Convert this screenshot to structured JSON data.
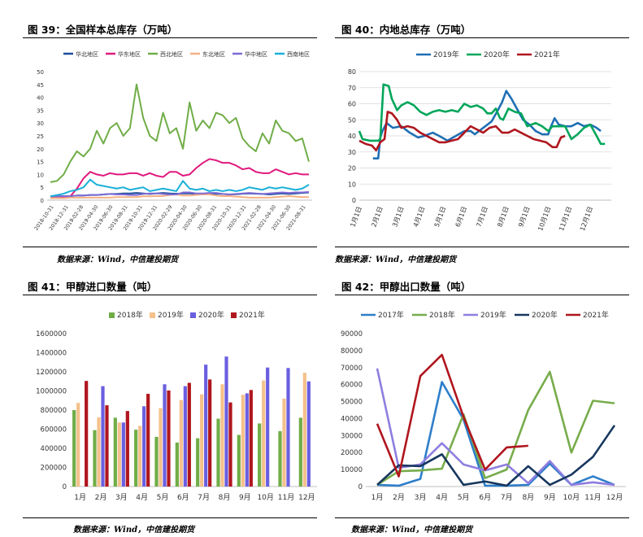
{
  "figures": [
    {
      "title": "图 39：全国样本总库存（万吨）",
      "source": "数据来源：Wind，中信建投期货"
    },
    {
      "title": "图 40：内地总库存（万吨）",
      "source": "数据来源：Wind，中信建投期货"
    },
    {
      "title": "图 41：甲醇进口数量（吨）",
      "source": "数据来源：Wind，中信建投期货"
    },
    {
      "title": "图 42：甲醇出口数量（吨）",
      "source": "数据来源：Wind，中信建投期货"
    }
  ],
  "chart_data": [
    {
      "type": "line",
      "ylim": [
        0,
        50
      ],
      "yticks": [
        0,
        5,
        10,
        15,
        20,
        25,
        30,
        35,
        40,
        45,
        50
      ],
      "x_tick_labels": [
        "2018-10-31",
        "2018-12-31",
        "2019-02-28",
        "2019-04-30",
        "2019-06-30",
        "2019-08-31",
        "2019-10-31",
        "2019-12-31",
        "2020-02-29",
        "2020-04-30",
        "2020-06-30",
        "2020-08-31",
        "2020-10-31",
        "2020-12-31",
        "2021-02-28",
        "2021-04-30",
        "2021-06-30",
        "2021-08-31"
      ],
      "legend_position": "top",
      "series": [
        {
          "name": "华北地区",
          "color": "#1f4e9c",
          "values": [
            1.5,
            1.5,
            1.5,
            1.6,
            1.8,
            1.8,
            2,
            2,
            2.2,
            2.4,
            2.4,
            2.6,
            2.6,
            2.8,
            2.6,
            2.4,
            2.6,
            2.8,
            2.6,
            2.5,
            2.6,
            2.6,
            2.4,
            2.2,
            2.4,
            2.5,
            2.4,
            2.2,
            2.3,
            2.5,
            2.6,
            2.5,
            2.4,
            2.2,
            2.4,
            2.6,
            2.4,
            2.6,
            2.8,
            3
          ]
        },
        {
          "name": "华东地区",
          "color": "#e0197d",
          "values": [
            1,
            1,
            1.2,
            1.5,
            4.5,
            8.5,
            11,
            10,
            9.5,
            10.5,
            10,
            10,
            10.5,
            10.5,
            9.5,
            10.5,
            9.5,
            9,
            11,
            11,
            9.5,
            10,
            12.5,
            14.5,
            16,
            15.5,
            14.5,
            14.5,
            13.5,
            12,
            12.5,
            11,
            10.5,
            10.5,
            12,
            11,
            10,
            10.5,
            10,
            10
          ]
        },
        {
          "name": "西北地区",
          "color": "#70ad47",
          "values": [
            7,
            7.5,
            10,
            15,
            19,
            17,
            20,
            27,
            22,
            28,
            30,
            25,
            28,
            45,
            32,
            25,
            23,
            34,
            26,
            28,
            20,
            38,
            27,
            31,
            28,
            34,
            33,
            30,
            32,
            24,
            21,
            19,
            26,
            22,
            31,
            27,
            26,
            23,
            24,
            15
          ]
        },
        {
          "name": "东北地区",
          "color": "#f4b183",
          "values": [
            0.8,
            0.8,
            0.8,
            1,
            1,
            1,
            1,
            1,
            1,
            1,
            1.2,
            1.2,
            1.2,
            1.2,
            1.5,
            1.5,
            1.6,
            1.6,
            2,
            2.2,
            1.8,
            1.8,
            2,
            2.2,
            2.2,
            1.8,
            1.6,
            1.6,
            1.4,
            1.2,
            1,
            1,
            1,
            1,
            1.2,
            1.4,
            1.6,
            1.4,
            1.2,
            1.2
          ]
        },
        {
          "name": "华中地区",
          "color": "#7e6bd4",
          "values": [
            1.5,
            1.5,
            1.6,
            1.6,
            1.8,
            1.8,
            2,
            2,
            2.2,
            2.4,
            2.2,
            2.2,
            2,
            2,
            2.4,
            2.6,
            2.6,
            2.4,
            2.2,
            2.2,
            3,
            3,
            2.6,
            2.6,
            2.8,
            2.8,
            2.4,
            2.2,
            2.4,
            2.6,
            2.8,
            2.6,
            2.4,
            2.6,
            2.8,
            3,
            2.8,
            3,
            3,
            3.2
          ]
        },
        {
          "name": "西南地区",
          "color": "#1ab0d8",
          "values": [
            1.5,
            2,
            2.5,
            3.5,
            4,
            5,
            8,
            6,
            5.5,
            5,
            4.5,
            5,
            4,
            4.5,
            5,
            3.5,
            4,
            4.5,
            4,
            3.5,
            7.5,
            4.5,
            4,
            4.5,
            3.5,
            4,
            3.5,
            4,
            3.5,
            4,
            5,
            4.5,
            4,
            5,
            4.5,
            5,
            4.5,
            4,
            4.5,
            6
          ]
        }
      ]
    },
    {
      "type": "line",
      "ylim": [
        0,
        80
      ],
      "yticks": [
        0,
        10,
        20,
        30,
        40,
        50,
        60,
        70,
        80
      ],
      "x_tick_labels": [
        "1月1日",
        "2月1日",
        "3月1日",
        "4月1日",
        "5月1日",
        "6月1日",
        "7月1日",
        "8月1日",
        "9月1日",
        "10月1日",
        "11月1日",
        "12月1日"
      ],
      "legend_position": "top",
      "series": [
        {
          "name": "2019年",
          "color": "#1f6fb4",
          "points": [
            [
              1.65,
              26
            ],
            [
              1.9,
              26
            ],
            [
              2.0,
              39
            ],
            [
              2.1,
              43
            ],
            [
              2.3,
              48
            ],
            [
              2.6,
              45
            ],
            [
              3.0,
              46
            ],
            [
              3.4,
              42
            ],
            [
              3.8,
              39
            ],
            [
              4.1,
              40
            ],
            [
              4.5,
              42
            ],
            [
              4.8,
              40
            ],
            [
              5.2,
              37
            ],
            [
              5.6,
              40
            ],
            [
              6.0,
              43
            ],
            [
              6.3,
              43
            ],
            [
              6.5,
              41
            ],
            [
              6.8,
              44
            ],
            [
              7.1,
              47
            ],
            [
              7.3,
              49
            ],
            [
              7.6,
              56
            ],
            [
              7.8,
              61
            ],
            [
              8.0,
              68
            ],
            [
              8.25,
              63
            ],
            [
              8.5,
              57
            ],
            [
              8.8,
              50
            ],
            [
              9.1,
              47
            ],
            [
              9.4,
              43
            ],
            [
              9.7,
              41
            ],
            [
              10.0,
              41
            ],
            [
              10.1,
              45
            ],
            [
              10.3,
              51
            ],
            [
              10.5,
              47
            ],
            [
              10.8,
              46
            ],
            [
              11.1,
              46
            ],
            [
              11.4,
              48
            ],
            [
              11.7,
              46
            ],
            [
              12.0,
              47
            ],
            [
              12.3,
              45
            ],
            [
              12.5,
              43
            ]
          ]
        },
        {
          "name": "2020年",
          "color": "#00a65a",
          "points": [
            [
              1.0,
              43
            ],
            [
              1.15,
              38
            ],
            [
              1.5,
              37
            ],
            [
              1.9,
              37
            ],
            [
              2.0,
              38
            ],
            [
              2.15,
              72
            ],
            [
              2.4,
              71
            ],
            [
              2.55,
              63
            ],
            [
              2.8,
              56
            ],
            [
              3.0,
              59
            ],
            [
              3.3,
              61
            ],
            [
              3.6,
              59
            ],
            [
              3.9,
              55
            ],
            [
              4.2,
              53
            ],
            [
              4.5,
              55
            ],
            [
              4.8,
              56
            ],
            [
              5.1,
              55
            ],
            [
              5.4,
              56
            ],
            [
              5.7,
              55
            ],
            [
              6.0,
              60
            ],
            [
              6.3,
              58
            ],
            [
              6.6,
              59
            ],
            [
              6.9,
              57
            ],
            [
              7.1,
              54
            ],
            [
              7.3,
              54
            ],
            [
              7.5,
              57
            ],
            [
              7.7,
              51
            ],
            [
              7.85,
              50
            ],
            [
              8.1,
              57
            ],
            [
              8.4,
              55
            ],
            [
              8.7,
              54
            ],
            [
              9.0,
              46
            ],
            [
              9.4,
              48
            ],
            [
              9.7,
              46
            ],
            [
              10.0,
              43
            ],
            [
              10.2,
              46
            ],
            [
              10.5,
              46
            ],
            [
              10.8,
              46
            ],
            [
              11.1,
              38
            ],
            [
              11.4,
              41
            ],
            [
              11.7,
              45
            ],
            [
              12.0,
              47
            ],
            [
              12.3,
              40
            ],
            [
              12.5,
              35
            ],
            [
              12.7,
              35
            ]
          ]
        },
        {
          "name": "2021年",
          "color": "#b0161e",
          "points": [
            [
              1.0,
              37
            ],
            [
              1.3,
              35
            ],
            [
              1.6,
              34
            ],
            [
              1.8,
              31
            ],
            [
              2.0,
              36
            ],
            [
              2.2,
              38
            ],
            [
              2.35,
              55
            ],
            [
              2.55,
              54
            ],
            [
              2.8,
              50
            ],
            [
              3.0,
              45
            ],
            [
              3.3,
              46
            ],
            [
              3.6,
              45
            ],
            [
              3.9,
              42
            ],
            [
              4.2,
              40
            ],
            [
              4.5,
              38
            ],
            [
              4.8,
              36
            ],
            [
              5.1,
              36
            ],
            [
              5.4,
              37
            ],
            [
              5.7,
              38
            ],
            [
              6.0,
              42
            ],
            [
              6.3,
              46
            ],
            [
              6.6,
              44
            ],
            [
              6.9,
              42
            ],
            [
              7.2,
              45
            ],
            [
              7.5,
              46
            ],
            [
              7.8,
              42
            ],
            [
              8.1,
              42
            ],
            [
              8.4,
              44
            ],
            [
              8.7,
              42
            ],
            [
              9.0,
              40
            ],
            [
              9.3,
              38
            ],
            [
              9.6,
              37
            ],
            [
              9.9,
              36
            ],
            [
              10.2,
              33
            ],
            [
              10.4,
              33
            ],
            [
              10.6,
              39
            ],
            [
              10.8,
              40
            ]
          ]
        }
      ]
    },
    {
      "type": "bar",
      "categories": [
        "1月",
        "2月",
        "3月",
        "4月",
        "5月",
        "6月",
        "7月",
        "8月",
        "9月",
        "10月",
        "11月",
        "12月"
      ],
      "ylim": [
        0,
        1600000
      ],
      "yticks": [
        0,
        200000,
        400000,
        600000,
        800000,
        1000000,
        1200000,
        1400000,
        1600000
      ],
      "legend_position": "top",
      "series": [
        {
          "name": "2018年",
          "color": "#70ad47",
          "values": [
            800000,
            590000,
            720000,
            595000,
            520000,
            460000,
            505000,
            710000,
            540000,
            660000,
            580000,
            720000
          ]
        },
        {
          "name": "2019年",
          "color": "#f4c18b",
          "values": [
            875000,
            725000,
            670000,
            635000,
            820000,
            905000,
            965000,
            1070000,
            960000,
            1110000,
            920000,
            1190000
          ]
        },
        {
          "name": "2020年",
          "color": "#6a5fe0",
          "values": [
            0,
            1050000,
            670000,
            840000,
            1070000,
            1050000,
            1275000,
            1360000,
            975000,
            1245000,
            1240000,
            1100000
          ]
        },
        {
          "name": "2021年",
          "color": "#b0161e",
          "values": [
            1105000,
            850000,
            790000,
            970000,
            1005000,
            1085000,
            1120000,
            880000,
            1010000,
            null,
            null,
            null
          ]
        }
      ]
    },
    {
      "type": "line",
      "categories": [
        "1月",
        "2月",
        "3月",
        "4月",
        "5月",
        "6月",
        "7月",
        "8月",
        "9月",
        "10月",
        "11月",
        "12月"
      ],
      "ylim": [
        0,
        90000
      ],
      "yticks": [
        0,
        10000,
        20000,
        30000,
        40000,
        50000,
        60000,
        70000,
        80000,
        90000
      ],
      "legend_position": "top",
      "series": [
        {
          "name": "2017年",
          "color": "#2e7ec9",
          "values": [
            1000,
            500,
            4500,
            61500,
            39500,
            500,
            500,
            1000,
            13500,
            1000,
            6000,
            1000
          ]
        },
        {
          "name": "2018年",
          "color": "#77ac4b",
          "values": [
            1000,
            9000,
            9500,
            10500,
            42500,
            5000,
            10000,
            45000,
            67500,
            20000,
            50500,
            49000
          ]
        },
        {
          "name": "2019年",
          "color": "#8f7ee0",
          "values": [
            69500,
            11000,
            13000,
            25500,
            13000,
            9500,
            13000,
            2000,
            15000,
            1000,
            2500,
            1000
          ]
        },
        {
          "name": "2020年",
          "color": "#17375e",
          "values": [
            1000,
            12500,
            12000,
            19000,
            1000,
            3000,
            500,
            12000,
            1000,
            7000,
            17500,
            36000
          ]
        },
        {
          "name": "2021年",
          "color": "#b0161e",
          "values": [
            37000,
            6000,
            65000,
            77500,
            41000,
            10000,
            23000,
            24000,
            null,
            null,
            null,
            null
          ]
        }
      ]
    }
  ]
}
